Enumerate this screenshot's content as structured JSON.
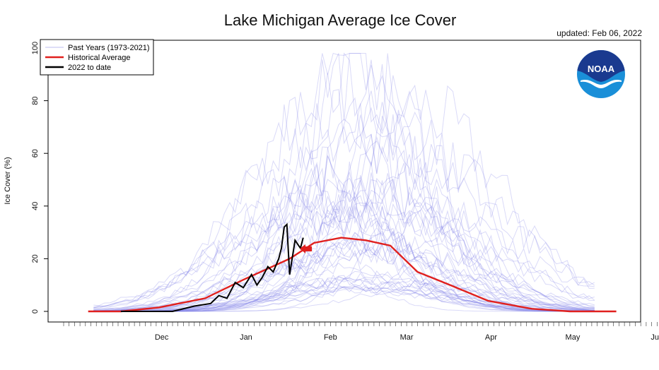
{
  "updated": "updated: Feb 06, 2022",
  "logo": {
    "text": "NOAA",
    "colors": {
      "top": "#1a3a8f",
      "bottom": "#1a8fd8"
    }
  },
  "chart_data": {
    "type": "line",
    "title": "Lake Michigan Average Ice Cover",
    "xlabel": "",
    "ylabel": "Ice Cover (%)",
    "ylim": [
      0,
      100
    ],
    "yticks": [
      0,
      20,
      40,
      60,
      80,
      100
    ],
    "x_months": [
      "Dec",
      "Jan",
      "Feb",
      "Mar",
      "Apr",
      "May",
      "Jun"
    ],
    "legend_position": "top-left",
    "legend": [
      {
        "label": "Past Years (1973-2021)",
        "color": "#c9c9f2"
      },
      {
        "label": "Historical Average",
        "color": "#e0201e"
      },
      {
        "label": "2022 to date",
        "color": "#000000"
      }
    ],
    "colors": {
      "past": "#7a7ae6",
      "average": "#e0201e",
      "current": "#000000",
      "arrow": "#e0201e"
    },
    "historical_average": {
      "name": "Historical Average",
      "x": [
        "Nov 10",
        "Dec 1",
        "Dec 15",
        "Jan 1",
        "Jan 15",
        "Feb 1",
        "Feb 10",
        "Feb 20",
        "Mar 1",
        "Mar 10",
        "Mar 20",
        "Apr 1",
        "Apr 15",
        "May 1",
        "May 15",
        "Jun 1"
      ],
      "values": [
        0,
        0,
        1.5,
        5,
        12,
        20,
        26,
        28,
        27,
        25,
        15,
        10,
        4,
        1,
        0,
        0
      ]
    },
    "current_2022": {
      "name": "2022 to date",
      "x": [
        "Dec 1",
        "Dec 10",
        "Dec 20",
        "Dec 28",
        "Jan 3",
        "Jan 6",
        "Jan 9",
        "Jan 12",
        "Jan 15",
        "Jan 18",
        "Jan 20",
        "Jan 22",
        "Jan 24",
        "Jan 26",
        "Jan 28",
        "Jan 29",
        "Jan 30",
        "Jan 31",
        "Feb 1",
        "Feb 3",
        "Feb 5",
        "Feb 6"
      ],
      "values": [
        0,
        0,
        0,
        2,
        3,
        6,
        5,
        11,
        9,
        14,
        10,
        13,
        17,
        15,
        20,
        24,
        32,
        33,
        14,
        27,
        24,
        28
      ]
    },
    "past_years_count": 49
  }
}
